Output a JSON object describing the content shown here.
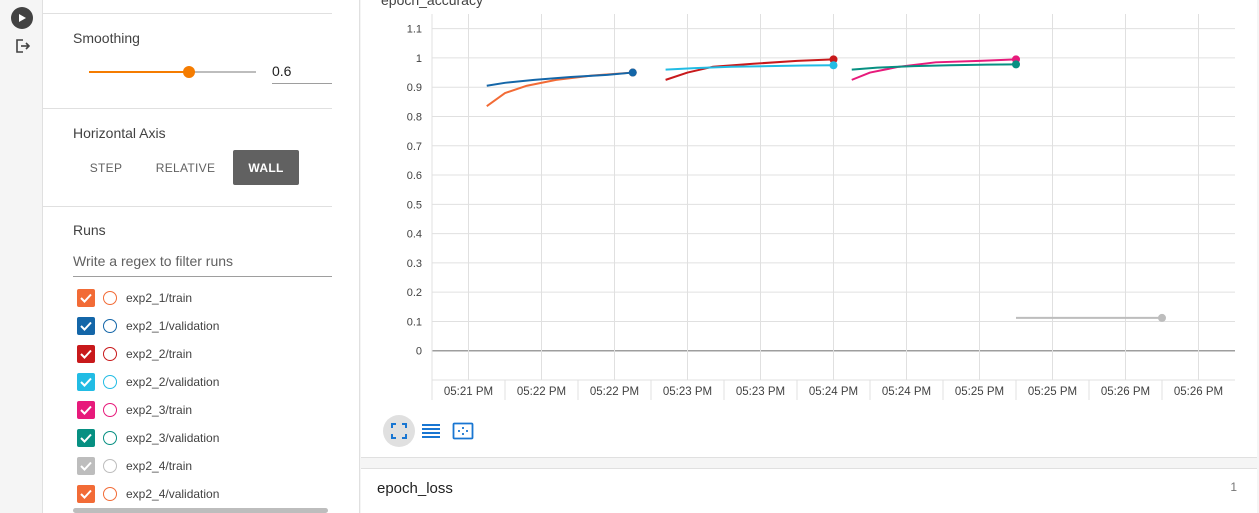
{
  "rail": {
    "play_icon": "play-icon",
    "logout_icon": "logout-icon"
  },
  "smoothing": {
    "title": "Smoothing",
    "value": "0.6",
    "fraction": 0.6,
    "accent": "#f57c00"
  },
  "horizontal_axis": {
    "title": "Horizontal Axis",
    "options": [
      "STEP",
      "RELATIVE",
      "WALL"
    ],
    "selected": "WALL"
  },
  "runs": {
    "title": "Runs",
    "filter_placeholder": "Write a regex to filter runs",
    "items": [
      {
        "label": "exp2_1/train",
        "color": "#f26b36",
        "checked": true
      },
      {
        "label": "exp2_1/validation",
        "color": "#1466a8",
        "checked": true
      },
      {
        "label": "exp2_2/train",
        "color": "#c8191b",
        "checked": true
      },
      {
        "label": "exp2_2/validation",
        "color": "#22bce4",
        "checked": true
      },
      {
        "label": "exp2_3/train",
        "color": "#e71a7b",
        "checked": true
      },
      {
        "label": "exp2_3/validation",
        "color": "#079082",
        "checked": true
      },
      {
        "label": "exp2_4/train",
        "color": "#bdbdbd",
        "checked": true
      },
      {
        "label": "exp2_4/validation",
        "color": "#f26b36",
        "checked": true
      }
    ]
  },
  "card": {
    "title": "epoch_accuracy"
  },
  "card2": {
    "title": "epoch_loss",
    "count": "1"
  },
  "chart_data": {
    "type": "line",
    "title": "",
    "xlabel": "",
    "ylabel": "",
    "ylim": [
      -0.1,
      1.15
    ],
    "y_ticks": [
      "1.1",
      "1",
      "0.9",
      "0.8",
      "0.7",
      "0.6",
      "0.5",
      "0.4",
      "0.3",
      "0.2",
      "0.1",
      "0"
    ],
    "x_ticks": [
      "05:21 PM",
      "05:22 PM",
      "05:22 PM",
      "05:23 PM",
      "05:23 PM",
      "05:24 PM",
      "05:24 PM",
      "05:25 PM",
      "05:25 PM",
      "05:26 PM",
      "05:26 PM"
    ],
    "x_range": [
      0,
      11
    ],
    "grid": true,
    "series": [
      {
        "color": "#f26b36",
        "x": [
          0.75,
          1.0,
          1.3,
          1.7,
          2.2,
          2.75
        ],
        "y": [
          0.835,
          0.88,
          0.905,
          0.925,
          0.94,
          0.95
        ]
      },
      {
        "color": "#1466a8",
        "x": [
          0.75,
          1.0,
          1.4,
          1.9,
          2.4,
          2.75
        ],
        "y": [
          0.905,
          0.915,
          0.925,
          0.935,
          0.942,
          0.95
        ]
      },
      {
        "color": "#c8191b",
        "x": [
          3.2,
          3.5,
          3.85,
          4.4,
          5.0,
          5.5
        ],
        "y": [
          0.925,
          0.95,
          0.97,
          0.98,
          0.99,
          0.995
        ]
      },
      {
        "color": "#22bce4",
        "x": [
          3.2,
          3.6,
          4.1,
          4.6,
          5.1,
          5.5
        ],
        "y": [
          0.96,
          0.965,
          0.97,
          0.972,
          0.974,
          0.975
        ]
      },
      {
        "color": "#e71a7b",
        "x": [
          5.75,
          6.0,
          6.4,
          6.9,
          7.5,
          8.0
        ],
        "y": [
          0.925,
          0.95,
          0.97,
          0.985,
          0.99,
          0.995
        ]
      },
      {
        "color": "#079082",
        "x": [
          5.75,
          6.1,
          6.6,
          7.1,
          7.6,
          8.0
        ],
        "y": [
          0.96,
          0.967,
          0.972,
          0.975,
          0.977,
          0.978
        ]
      },
      {
        "color": "#bdbdbd",
        "x": [
          8.0,
          10.0
        ],
        "y": [
          0.112,
          0.112
        ]
      }
    ]
  }
}
